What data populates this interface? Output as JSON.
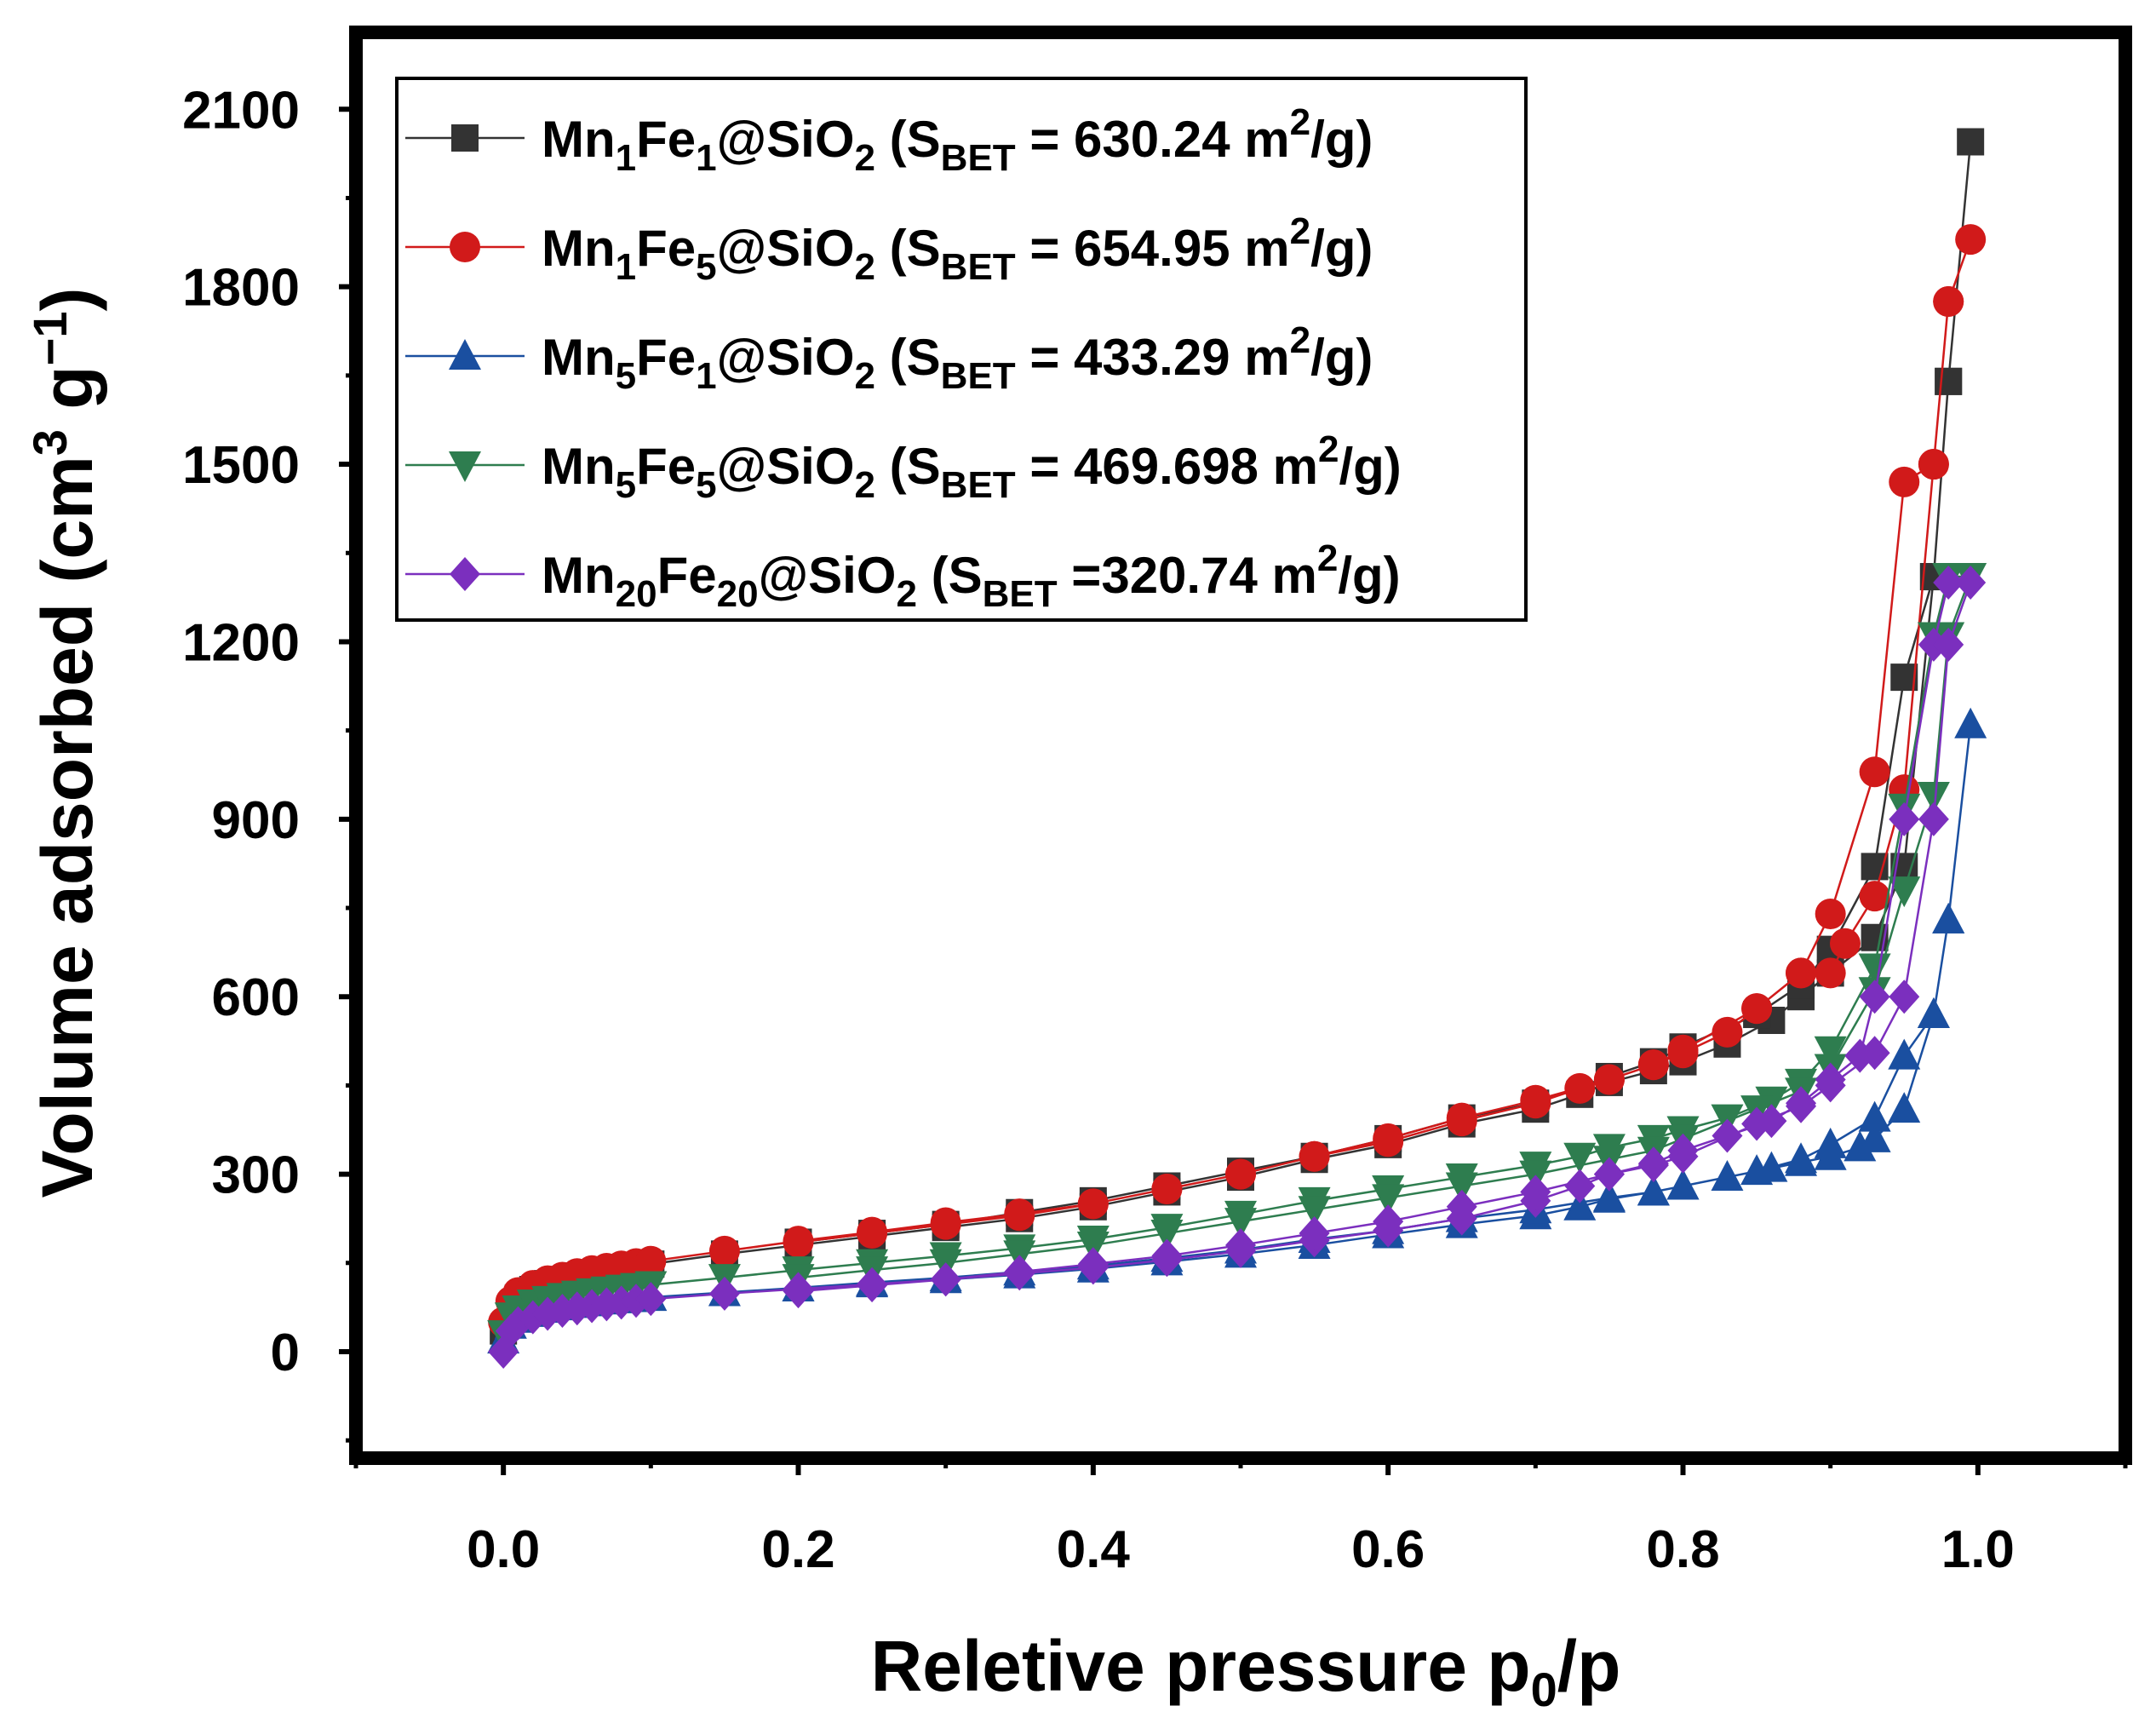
{
  "chart_data": {
    "type": "scatter",
    "xlabel": "Reletive pressure p",
    "xlabel_sub": "0",
    "xlabel_tail": "/p",
    "ylabel": "Volume adsorbed  (cm",
    "ylabel_sup": "3",
    "ylabel_mid": " g",
    "ylabel_sup2": "−1",
    "ylabel_tail": ")",
    "xlim": [
      -0.1,
      1.1
    ],
    "ylim": [
      -180,
      2230
    ],
    "xticks": [
      "0.0",
      "0.2",
      "0.4",
      "0.6",
      "0.8",
      "1.0"
    ],
    "xtick_values": [
      0,
      0.2,
      0.4,
      0.6,
      0.8,
      1.0
    ],
    "yticks": [
      "0",
      "300",
      "600",
      "900",
      "1200",
      "1500",
      "1800",
      "2100"
    ],
    "ytick_values": [
      0,
      300,
      600,
      900,
      1200,
      1500,
      1800,
      2100
    ],
    "legend_position": "top-left",
    "series": [
      {
        "name": "Mn1Fe1@SiO2",
        "legend": [
          [
            "Mn",
            ""
          ],
          [
            "1",
            "sub"
          ],
          [
            "Fe",
            ""
          ],
          [
            "1",
            "sub"
          ],
          [
            "@SiO",
            ""
          ],
          [
            "2",
            "sub"
          ],
          [
            " (S",
            ""
          ],
          [
            "BET",
            "sub"
          ],
          [
            " = 630.24 m",
            ""
          ],
          [
            "2",
            "sup"
          ],
          [
            "/g)",
            ""
          ]
        ],
        "color": "#333333",
        "marker": "square",
        "x": [
          0.0,
          0.005,
          0.01,
          0.02,
          0.03,
          0.04,
          0.05,
          0.06,
          0.07,
          0.08,
          0.09,
          0.1,
          0.15,
          0.2,
          0.25,
          0.3,
          0.35,
          0.4,
          0.45,
          0.5,
          0.55,
          0.6,
          0.65,
          0.7,
          0.73,
          0.75,
          0.78,
          0.8,
          0.83,
          0.86,
          0.88,
          0.9,
          0.93,
          0.95,
          0.97,
          0.98,
          0.995,
          0.98,
          0.97,
          0.95,
          0.93,
          0.9,
          0.88,
          0.85,
          0.8,
          0.78,
          0.75,
          0.7,
          0.65,
          0.6,
          0.55,
          0.5,
          0.45,
          0.4,
          0.35,
          0.3,
          0.25,
          0.2
        ],
        "y": [
          35,
          70,
          90,
          105,
          115,
          122,
          128,
          132,
          136,
          140,
          144,
          148,
          165,
          180,
          195,
          210,
          225,
          245,
          270,
          295,
          325,
          350,
          385,
          410,
          435,
          455,
          475,
          490,
          520,
          560,
          600,
          640,
          700,
          820,
          1310,
          1640,
          2045,
          1640,
          1310,
          1140,
          820,
          680,
          620,
          570,
          515,
          490,
          465,
          420,
          395,
          360,
          330,
          305,
          280,
          255,
          235,
          215,
          200,
          185
        ]
      },
      {
        "name": "Mn1Fe5@SiO2",
        "legend": [
          [
            "Mn",
            ""
          ],
          [
            "1",
            "sub"
          ],
          [
            "Fe",
            ""
          ],
          [
            "5",
            "sub"
          ],
          [
            "@SiO",
            ""
          ],
          [
            "2",
            "sub"
          ],
          [
            " (S",
            ""
          ],
          [
            "BET",
            "sub"
          ],
          [
            " = 654.95 m",
            ""
          ],
          [
            "2",
            "sup"
          ],
          [
            "/g)",
            ""
          ]
        ],
        "color": "#d11a1a",
        "marker": "circle",
        "x": [
          0.0,
          0.005,
          0.01,
          0.02,
          0.03,
          0.04,
          0.05,
          0.06,
          0.07,
          0.08,
          0.09,
          0.1,
          0.15,
          0.2,
          0.25,
          0.3,
          0.35,
          0.4,
          0.45,
          0.5,
          0.55,
          0.6,
          0.65,
          0.7,
          0.73,
          0.75,
          0.78,
          0.8,
          0.83,
          0.85,
          0.88,
          0.9,
          0.93,
          0.95,
          0.97,
          0.98,
          0.995,
          0.98,
          0.97,
          0.95,
          0.93,
          0.91,
          0.9,
          0.88,
          0.85,
          0.8,
          0.78,
          0.75,
          0.7,
          0.65,
          0.6,
          0.55,
          0.5,
          0.45,
          0.4,
          0.35,
          0.3,
          0.25,
          0.2
        ],
        "y": [
          50,
          85,
          100,
          112,
          120,
          126,
          132,
          137,
          141,
          145,
          149,
          153,
          170,
          187,
          202,
          218,
          233,
          250,
          275,
          300,
          330,
          355,
          390,
          420,
          445,
          460,
          485,
          505,
          540,
          580,
          640,
          740,
          980,
          1470,
          1500,
          1775,
          1880,
          1775,
          1500,
          950,
          770,
          690,
          640,
          640,
          580,
          510,
          485,
          460,
          425,
          395,
          360,
          330,
          300,
          275,
          250,
          230,
          215,
          200,
          185
        ]
      },
      {
        "name": "Mn5Fe1@SiO2",
        "legend": [
          [
            "Mn",
            ""
          ],
          [
            "5",
            "sub"
          ],
          [
            "Fe",
            ""
          ],
          [
            "1",
            "sub"
          ],
          [
            "@SiO",
            ""
          ],
          [
            "2",
            "sub"
          ],
          [
            " (S",
            ""
          ],
          [
            "BET",
            "sub"
          ],
          [
            " = 433.29 m",
            ""
          ],
          [
            "2",
            "sup"
          ],
          [
            "/g)",
            ""
          ]
        ],
        "color": "#1a4fa0",
        "marker": "triangle-up",
        "x": [
          0.0,
          0.005,
          0.01,
          0.02,
          0.03,
          0.04,
          0.05,
          0.06,
          0.07,
          0.08,
          0.09,
          0.1,
          0.15,
          0.2,
          0.25,
          0.3,
          0.35,
          0.4,
          0.45,
          0.5,
          0.55,
          0.6,
          0.65,
          0.7,
          0.73,
          0.75,
          0.78,
          0.8,
          0.83,
          0.86,
          0.88,
          0.9,
          0.92,
          0.93,
          0.95,
          0.97,
          0.98,
          0.995,
          0.98,
          0.97,
          0.95,
          0.93,
          0.9,
          0.88,
          0.85,
          0.8,
          0.78,
          0.75,
          0.7,
          0.65,
          0.6,
          0.55,
          0.5,
          0.45,
          0.4,
          0.35,
          0.3,
          0.25,
          0.2
        ],
        "y": [
          20,
          45,
          55,
          65,
          72,
          76,
          80,
          83,
          86,
          88,
          90,
          92,
          100,
          108,
          115,
          122,
          130,
          140,
          152,
          165,
          180,
          198,
          215,
          230,
          245,
          258,
          270,
          280,
          295,
          310,
          320,
          330,
          345,
          360,
          410,
          570,
          730,
          1060,
          730,
          570,
          500,
          395,
          350,
          325,
          305,
          280,
          270,
          260,
          240,
          225,
          205,
          190,
          172,
          158,
          145,
          135,
          125,
          117,
          108
        ]
      },
      {
        "name": "Mn5Fe5@SiO2",
        "legend": [
          [
            "Mn",
            ""
          ],
          [
            "5",
            "sub"
          ],
          [
            "Fe",
            ""
          ],
          [
            "5",
            "sub"
          ],
          [
            "@SiO",
            ""
          ],
          [
            "2",
            "sub"
          ],
          [
            " (S",
            ""
          ],
          [
            "BET",
            "sub"
          ],
          [
            " = 469.698 m",
            ""
          ],
          [
            "2",
            "sup"
          ],
          [
            "/g)",
            ""
          ]
        ],
        "color": "#2e7d4f",
        "marker": "triangle-down",
        "x": [
          0.0,
          0.005,
          0.01,
          0.02,
          0.03,
          0.04,
          0.05,
          0.06,
          0.07,
          0.08,
          0.09,
          0.1,
          0.15,
          0.2,
          0.25,
          0.3,
          0.35,
          0.4,
          0.45,
          0.5,
          0.55,
          0.6,
          0.65,
          0.7,
          0.73,
          0.75,
          0.78,
          0.8,
          0.83,
          0.86,
          0.88,
          0.9,
          0.93,
          0.95,
          0.97,
          0.98,
          0.995,
          0.98,
          0.97,
          0.95,
          0.93,
          0.9,
          0.88,
          0.85,
          0.8,
          0.78,
          0.75,
          0.7,
          0.65,
          0.6,
          0.55,
          0.5,
          0.45,
          0.4,
          0.35,
          0.3,
          0.25,
          0.2
        ],
        "y": [
          30,
          60,
          72,
          82,
          88,
          93,
          97,
          101,
          104,
          107,
          110,
          113,
          125,
          138,
          150,
          162,
          175,
          190,
          210,
          232,
          255,
          275,
          295,
          315,
          330,
          345,
          360,
          375,
          395,
          425,
          455,
          510,
          650,
          920,
          1210,
          1310,
          1310,
          1210,
          940,
          780,
          610,
          480,
          440,
          410,
          360,
          340,
          325,
          300,
          280,
          260,
          240,
          220,
          200,
          180,
          165,
          150,
          138,
          125
        ]
      },
      {
        "name": "Mn20Fe20@SiO2",
        "legend": [
          [
            "Mn",
            ""
          ],
          [
            "20",
            "sub"
          ],
          [
            "Fe",
            ""
          ],
          [
            "20",
            "sub"
          ],
          [
            "@SiO",
            ""
          ],
          [
            "2",
            "sub"
          ],
          [
            " (S",
            ""
          ],
          [
            "BET",
            "sub"
          ],
          [
            " =320.74 m",
            ""
          ],
          [
            "2",
            "sup"
          ],
          [
            "/g)",
            ""
          ]
        ],
        "color": "#7b2fbe",
        "marker": "diamond",
        "x": [
          0.0,
          0.005,
          0.01,
          0.02,
          0.03,
          0.04,
          0.05,
          0.06,
          0.07,
          0.08,
          0.09,
          0.1,
          0.15,
          0.2,
          0.25,
          0.3,
          0.35,
          0.4,
          0.45,
          0.5,
          0.55,
          0.6,
          0.65,
          0.7,
          0.73,
          0.75,
          0.78,
          0.8,
          0.83,
          0.86,
          0.88,
          0.9,
          0.92,
          0.93,
          0.95,
          0.97,
          0.98,
          0.995,
          0.98,
          0.97,
          0.95,
          0.93,
          0.9,
          0.88,
          0.85,
          0.8,
          0.78,
          0.75,
          0.7,
          0.65,
          0.6,
          0.55,
          0.5,
          0.45,
          0.4,
          0.35,
          0.3,
          0.25,
          0.2
        ],
        "y": [
          0,
          35,
          48,
          58,
          64,
          69,
          73,
          77,
          80,
          83,
          86,
          89,
          98,
          106,
          114,
          122,
          132,
          142,
          155,
          170,
          188,
          205,
          225,
          255,
          280,
          300,
          318,
          340,
          365,
          390,
          420,
          460,
          500,
          600,
          900,
          1195,
          1300,
          1300,
          1195,
          900,
          600,
          505,
          450,
          415,
          385,
          330,
          315,
          300,
          270,
          245,
          220,
          200,
          180,
          162,
          148,
          135,
          122,
          112,
          102
        ]
      }
    ]
  }
}
